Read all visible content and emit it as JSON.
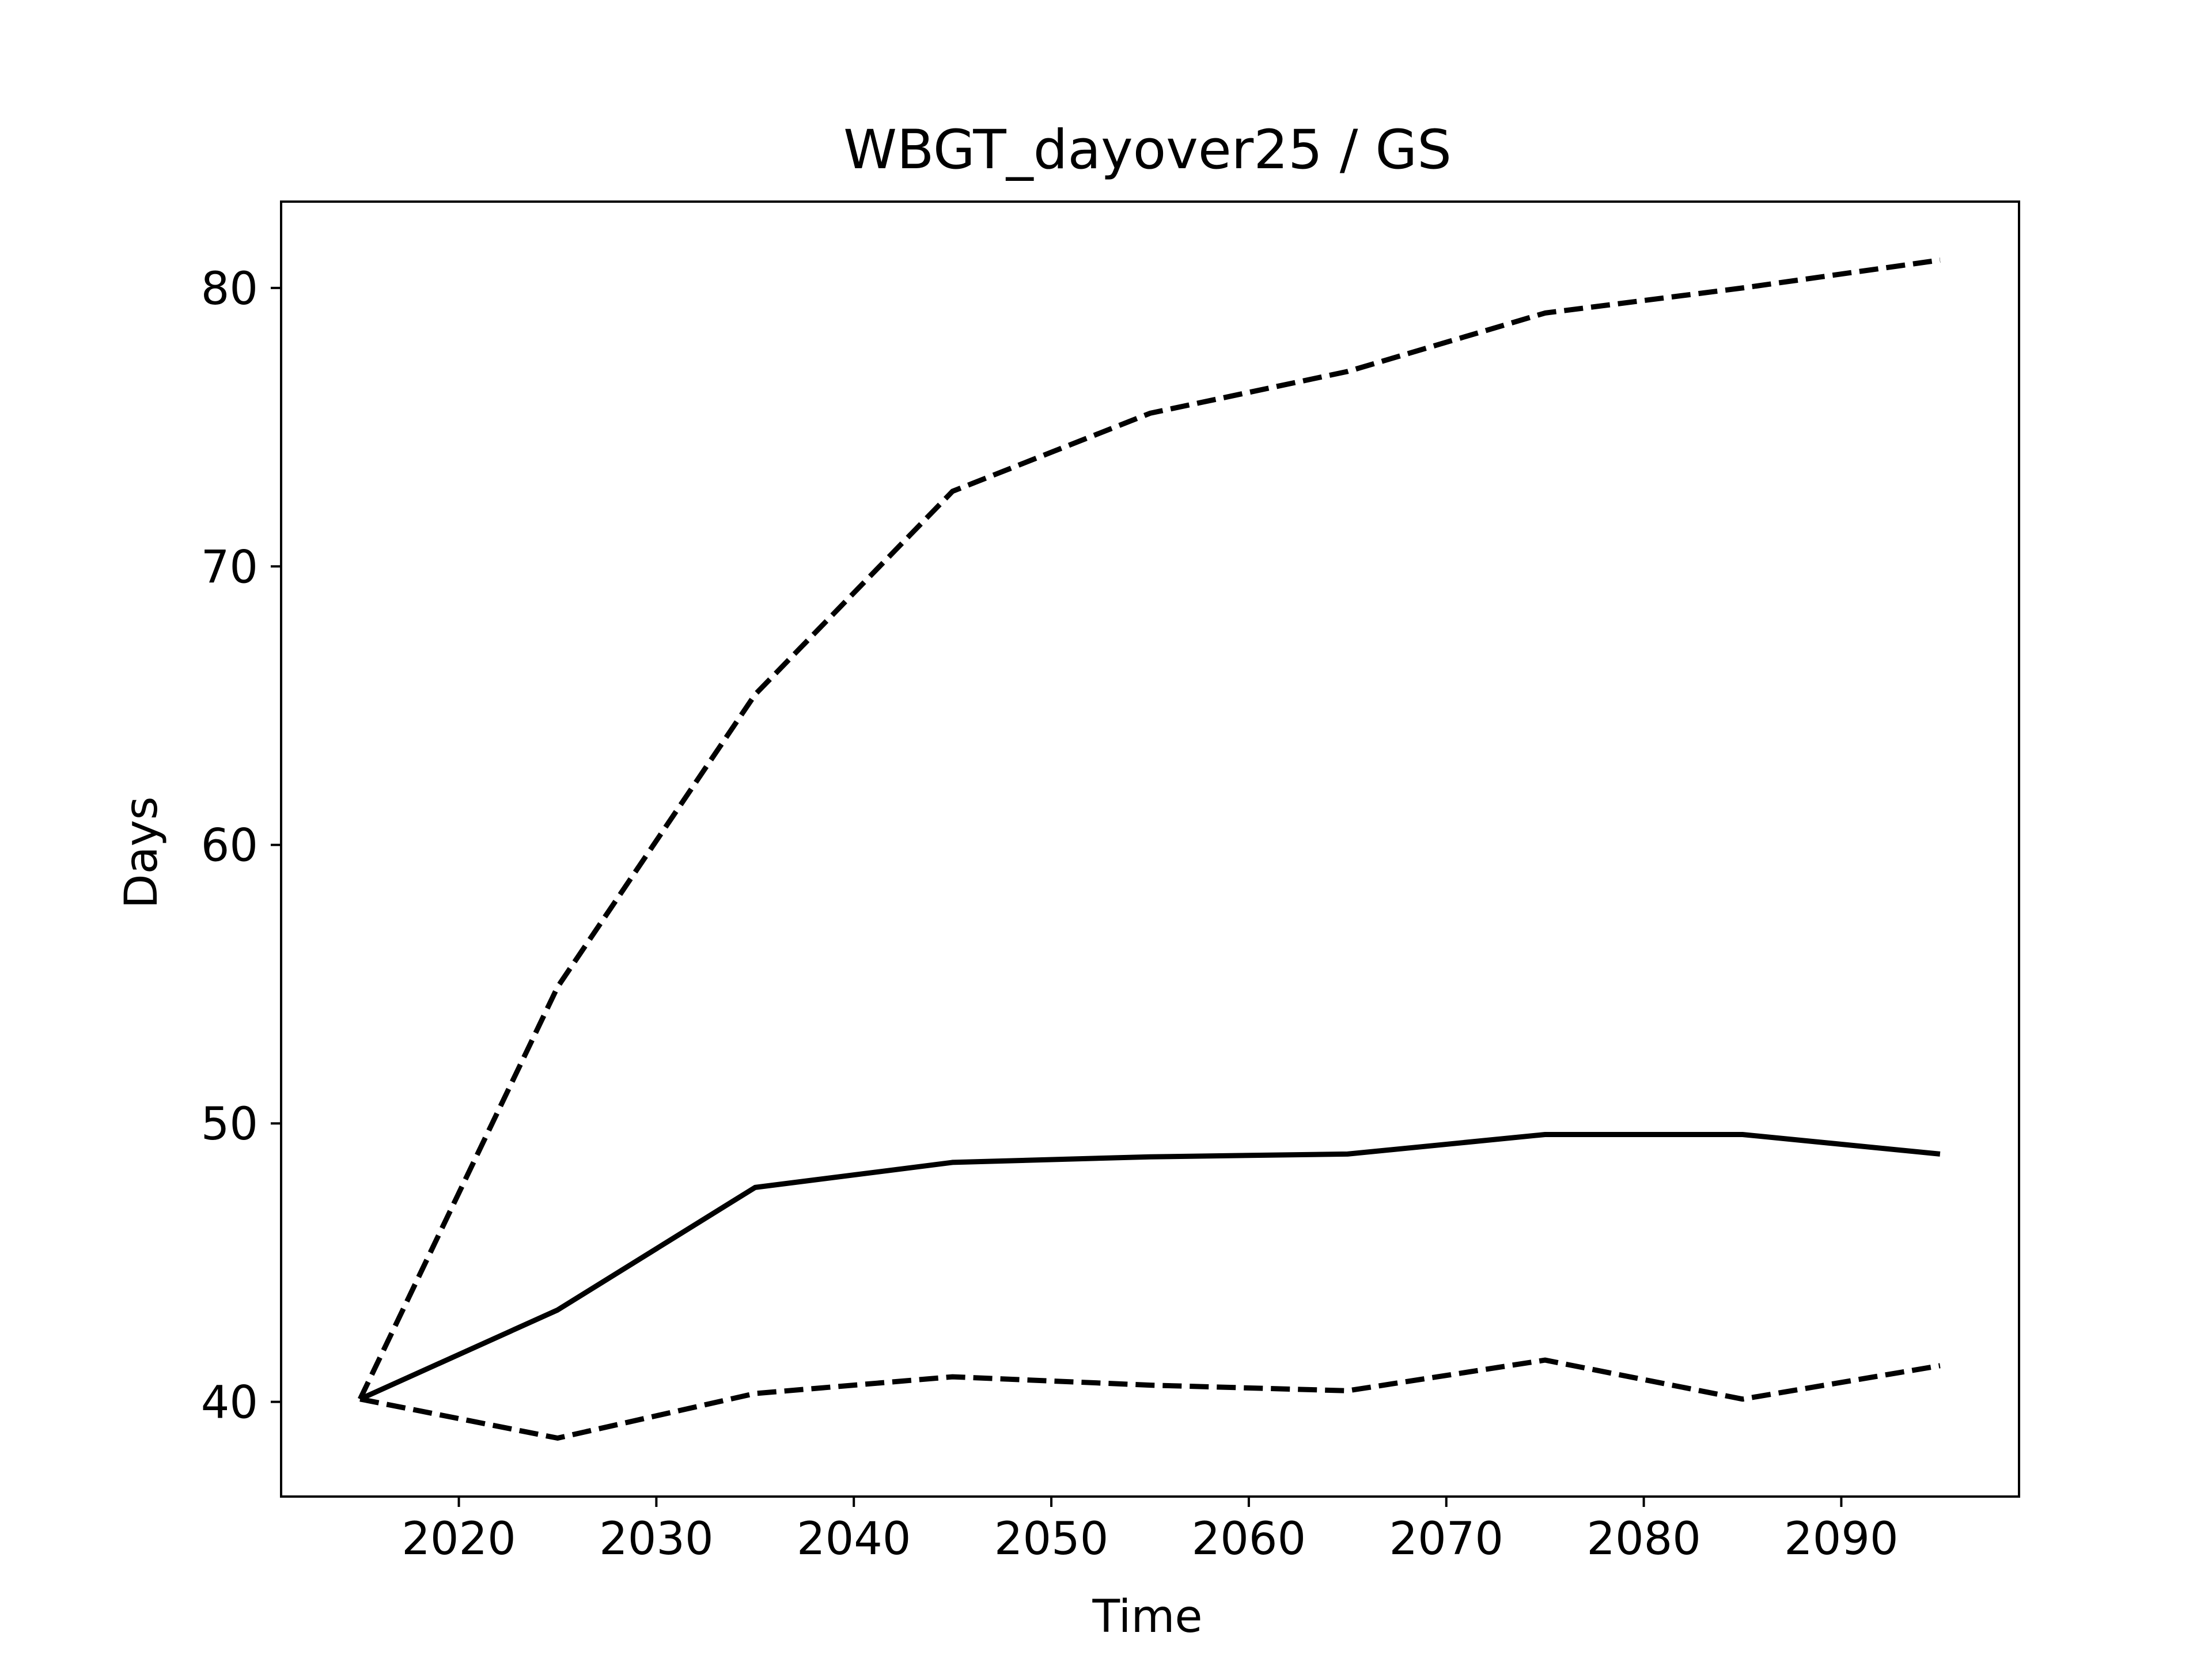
{
  "chart_data": {
    "type": "line",
    "title": "WBGT_dayover25 / GS",
    "xlabel": "Time",
    "ylabel": "Days",
    "xlim": [
      2011,
      2099
    ],
    "ylim": [
      36.6,
      83.1
    ],
    "xticks": [
      2020,
      2030,
      2040,
      2050,
      2060,
      2070,
      2080,
      2090
    ],
    "yticks": [
      40,
      50,
      60,
      70,
      80
    ],
    "grid": false,
    "legend": "none",
    "x": [
      2015,
      2025,
      2035,
      2045,
      2055,
      2065,
      2075,
      2085,
      2095
    ],
    "series": [
      {
        "style": "dashed",
        "color": "#000000",
        "values": [
          40.1,
          54.9,
          65.4,
          72.7,
          75.5,
          77.0,
          79.1,
          80.0,
          81.0
        ]
      },
      {
        "style": "solid",
        "color": "#000000",
        "values": [
          40.1,
          43.3,
          47.7,
          48.6,
          48.8,
          48.9,
          49.6,
          49.6,
          48.9
        ]
      },
      {
        "style": "dashed",
        "color": "#000000",
        "values": [
          40.1,
          38.7,
          40.3,
          40.9,
          40.6,
          40.4,
          41.5,
          40.1,
          41.3
        ]
      }
    ]
  }
}
